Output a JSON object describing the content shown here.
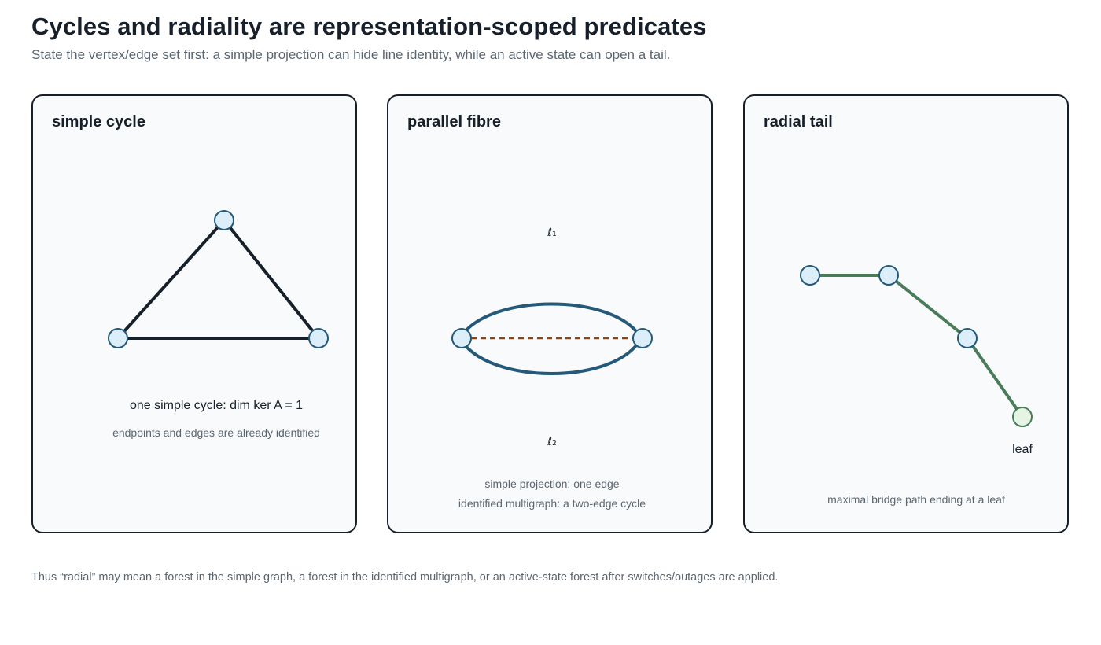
{
  "title": "Cycles and radiality are representation-scoped predicates",
  "subtitle": "State the vertex/edge set first: a simple projection can hide line identity, while an active state can open a tail.",
  "panels": [
    {
      "title": "simple cycle",
      "caption_main": "one simple cycle: dim ker A = 1",
      "caption_note": "endpoints and edges are already identified"
    },
    {
      "title": "parallel fibre",
      "label_top": "ℓ₁",
      "label_bottom": "ℓ₂",
      "caption_line1": "simple projection: one edge",
      "caption_line2": "identified multigraph: a two-edge cycle"
    },
    {
      "title": "radial tail",
      "leaf_label": "leaf",
      "caption_note": "maximal bridge path ending at a leaf"
    }
  ],
  "footer": "Thus “radial” may mean a forest in the simple graph, a forest in the identified multigraph, or an active-state forest after switches/outages are applied.",
  "colors": {
    "edge_dark": "#17202a",
    "edge_blue": "#24597a",
    "edge_dashed": "#8b4513",
    "edge_green": "#4a7c59",
    "node_fill": "#dceefa",
    "node_stroke": "#24597a",
    "leaf_fill": "#e6f4e4",
    "leaf_stroke": "#4a7c59"
  }
}
